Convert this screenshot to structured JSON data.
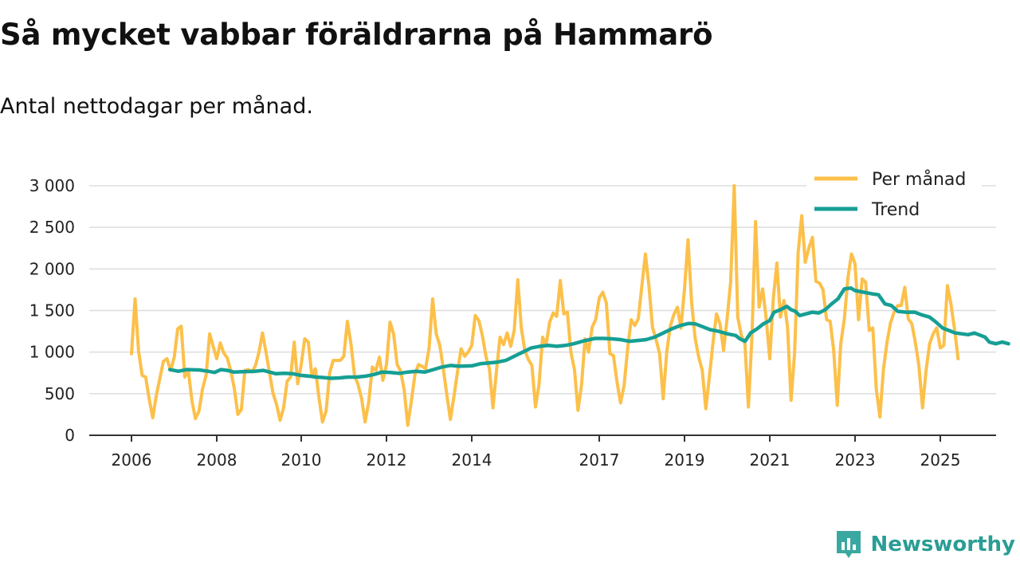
{
  "brand": {
    "name": "Newsworthy",
    "accent": "#3aa8a0"
  },
  "chart_data": {
    "type": "line",
    "title": "Så mycket vabbar föräldrarna på Hammarö",
    "subtitle": "Antal nettodagar per månad.",
    "xlabel": "",
    "ylabel": "",
    "xlim": [
      2006,
      2025.6
    ],
    "ylim": [
      0,
      3000
    ],
    "y_ticks": [
      0,
      500,
      1000,
      1500,
      2000,
      2500,
      3000
    ],
    "y_tick_labels": [
      "0",
      "500",
      "1 000",
      "1 500",
      "2 000",
      "2 500",
      "3 000"
    ],
    "x_ticks": [
      2006,
      2008,
      2010,
      2012,
      2014,
      2017,
      2019,
      2021,
      2023,
      2025
    ],
    "x_tick_labels": [
      "2006",
      "2008",
      "2010",
      "2012",
      "2014",
      "2017",
      "2019",
      "2021",
      "2023",
      "2025"
    ],
    "grid": true,
    "legend_position": "top-right",
    "series": [
      {
        "name": "Per månad",
        "color": "#fcc04a",
        "start": 2006.0,
        "step": 0.08333,
        "values": [
          980,
          1640,
          1010,
          720,
          700,
          430,
          210,
          480,
          690,
          890,
          920,
          780,
          930,
          1280,
          1310,
          700,
          780,
          420,
          200,
          290,
          560,
          720,
          1220,
          1070,
          920,
          1110,
          990,
          930,
          770,
          560,
          250,
          310,
          780,
          790,
          760,
          840,
          1000,
          1230,
          1000,
          750,
          500,
          370,
          180,
          330,
          650,
          700,
          1120,
          620,
          850,
          1160,
          1120,
          710,
          800,
          450,
          160,
          290,
          750,
          900,
          900,
          900,
          950,
          1370,
          1100,
          720,
          610,
          440,
          160,
          400,
          820,
          780,
          940,
          660,
          850,
          1360,
          1220,
          850,
          770,
          540,
          120,
          410,
          730,
          850,
          830,
          800,
          1050,
          1640,
          1220,
          1080,
          800,
          480,
          190,
          470,
          770,
          1040,
          950,
          1000,
          1080,
          1440,
          1380,
          1200,
          950,
          800,
          330,
          780,
          1180,
          1090,
          1230,
          1070,
          1260,
          1870,
          1290,
          1020,
          910,
          840,
          340,
          610,
          1180,
          1090,
          1360,
          1470,
          1430,
          1860,
          1460,
          1480,
          1000,
          790,
          300,
          610,
          1160,
          1000,
          1300,
          1390,
          1650,
          1720,
          1590,
          980,
          960,
          640,
          390,
          600,
          1040,
          1390,
          1320,
          1400,
          1800,
          2180,
          1790,
          1300,
          1150,
          980,
          440,
          1000,
          1310,
          1450,
          1540,
          1290,
          1760,
          2350,
          1600,
          1170,
          940,
          780,
          320,
          700,
          1100,
          1460,
          1340,
          1020,
          1410,
          1840,
          3000,
          1420,
          1200,
          1100,
          340,
          1200,
          2570,
          1540,
          1760,
          1400,
          920,
          1640,
          2070,
          1420,
          1620,
          1300,
          420,
          1000,
          2200,
          2640,
          2080,
          2250,
          2380,
          1850,
          1830,
          1750,
          1390,
          1370,
          1020,
          360,
          1100,
          1400,
          1890,
          2180,
          2060,
          1390,
          1880,
          1840,
          1260,
          1290,
          550,
          220,
          790,
          1120,
          1350,
          1480,
          1560,
          1560,
          1780,
          1400,
          1340,
          1110,
          830,
          330,
          780,
          1100,
          1220,
          1290,
          1050,
          1080,
          1800,
          1580,
          1280,
          920
        ]
      },
      {
        "name": "Trend",
        "color": "#169f94",
        "points": [
          [
            2006.9,
            790
          ],
          [
            2007.1,
            770
          ],
          [
            2007.3,
            790
          ],
          [
            2007.6,
            785
          ],
          [
            2007.8,
            770
          ],
          [
            2007.95,
            755
          ],
          [
            2008.1,
            790
          ],
          [
            2008.25,
            780
          ],
          [
            2008.4,
            760
          ],
          [
            2008.6,
            765
          ],
          [
            2008.9,
            770
          ],
          [
            2009.1,
            780
          ],
          [
            2009.4,
            740
          ],
          [
            2009.6,
            745
          ],
          [
            2009.8,
            740
          ],
          [
            2010.0,
            720
          ],
          [
            2010.2,
            710
          ],
          [
            2010.35,
            700
          ],
          [
            2010.5,
            695
          ],
          [
            2010.7,
            685
          ],
          [
            2010.9,
            690
          ],
          [
            2011.1,
            700
          ],
          [
            2011.3,
            700
          ],
          [
            2011.5,
            710
          ],
          [
            2011.7,
            730
          ],
          [
            2011.9,
            760
          ],
          [
            2012.1,
            755
          ],
          [
            2012.3,
            745
          ],
          [
            2012.5,
            760
          ],
          [
            2012.7,
            770
          ],
          [
            2012.9,
            760
          ],
          [
            2013.1,
            790
          ],
          [
            2013.3,
            820
          ],
          [
            2013.5,
            840
          ],
          [
            2013.7,
            830
          ],
          [
            2014.0,
            835
          ],
          [
            2014.2,
            860
          ],
          [
            2014.4,
            870
          ],
          [
            2014.6,
            880
          ],
          [
            2014.8,
            900
          ],
          [
            2015.0,
            950
          ],
          [
            2015.2,
            1000
          ],
          [
            2015.4,
            1050
          ],
          [
            2015.6,
            1070
          ],
          [
            2015.8,
            1080
          ],
          [
            2016.0,
            1070
          ],
          [
            2016.2,
            1080
          ],
          [
            2016.4,
            1100
          ],
          [
            2016.6,
            1130
          ],
          [
            2016.9,
            1165
          ],
          [
            2017.1,
            1165
          ],
          [
            2017.3,
            1160
          ],
          [
            2017.5,
            1150
          ],
          [
            2017.7,
            1130
          ],
          [
            2017.9,
            1140
          ],
          [
            2018.1,
            1150
          ],
          [
            2018.3,
            1180
          ],
          [
            2018.5,
            1230
          ],
          [
            2018.7,
            1280
          ],
          [
            2018.9,
            1320
          ],
          [
            2019.1,
            1345
          ],
          [
            2019.25,
            1340
          ],
          [
            2019.4,
            1310
          ],
          [
            2019.6,
            1270
          ],
          [
            2019.8,
            1250
          ],
          [
            2020.0,
            1220
          ],
          [
            2020.2,
            1200
          ],
          [
            2020.3,
            1160
          ],
          [
            2020.42,
            1130
          ],
          [
            2020.55,
            1230
          ],
          [
            2020.7,
            1280
          ],
          [
            2020.85,
            1340
          ],
          [
            2021.0,
            1380
          ],
          [
            2021.1,
            1480
          ],
          [
            2021.25,
            1510
          ],
          [
            2021.4,
            1550
          ],
          [
            2021.5,
            1510
          ],
          [
            2021.6,
            1490
          ],
          [
            2021.7,
            1440
          ],
          [
            2021.85,
            1460
          ],
          [
            2022.0,
            1480
          ],
          [
            2022.15,
            1470
          ],
          [
            2022.3,
            1510
          ],
          [
            2022.45,
            1580
          ],
          [
            2022.6,
            1640
          ],
          [
            2022.75,
            1760
          ],
          [
            2022.9,
            1770
          ],
          [
            2023.0,
            1740
          ],
          [
            2023.2,
            1720
          ],
          [
            2023.4,
            1700
          ],
          [
            2023.55,
            1690
          ],
          [
            2023.7,
            1580
          ],
          [
            2023.85,
            1560
          ],
          [
            2024.0,
            1490
          ],
          [
            2024.2,
            1480
          ],
          [
            2024.4,
            1480
          ],
          [
            2024.55,
            1450
          ],
          [
            2024.75,
            1420
          ],
          [
            2024.9,
            1360
          ],
          [
            2025.05,
            1290
          ],
          [
            2025.2,
            1260
          ],
          [
            2025.35,
            1230
          ],
          [
            2025.5,
            1220
          ],
          [
            2025.65,
            1210
          ],
          [
            2025.8,
            1230
          ],
          [
            2025.95,
            1200
          ],
          [
            2026.05,
            1180
          ],
          [
            2026.15,
            1120
          ],
          [
            2026.3,
            1100
          ],
          [
            2026.45,
            1120
          ],
          [
            2026.6,
            1100
          ]
        ]
      }
    ]
  }
}
